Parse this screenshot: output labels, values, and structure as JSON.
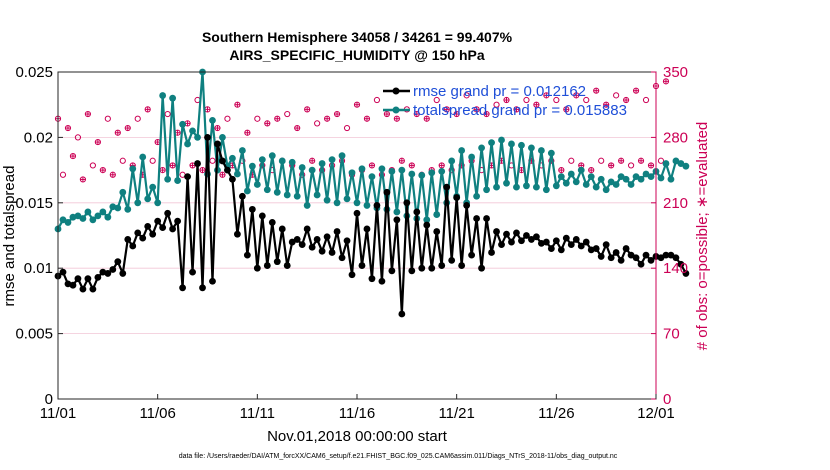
{
  "chart_data": {
    "type": "line",
    "title_line1": "Southern Hemisphere 34058 / 34261 = 99.407%",
    "title_line2": "AIRS_SPECIFIC_HUMIDITY @ 150 hPa",
    "xlabel": "Nov.01,2018 00:00:00 start",
    "ylabel_left": "rmse and totalspread",
    "ylabel_right": "# of obs: o=possible; ∗=evaluated",
    "footnote": "data file: /Users/raeder/DAI/ATM_forcXX/CAM6_setup/f.e21.FHIST_BGC.f09_025.CAM6assim.011/Diags_NTrS_2018-11/obs_diag_output.nc",
    "x_ticks": [
      0,
      5,
      10,
      15,
      20,
      25,
      30
    ],
    "x_tick_labels": [
      "11/01",
      "11/06",
      "11/11",
      "11/16",
      "11/21",
      "11/26",
      "12/01"
    ],
    "ylim_left": [
      0,
      0.025
    ],
    "y_ticks_left": [
      0,
      0.005,
      0.01,
      0.015,
      0.02,
      0.025
    ],
    "y_tick_labels_left": [
      "0",
      "0.005",
      "0.01",
      "0.015",
      "0.02",
      "0.025"
    ],
    "ylim_right": [
      0,
      350
    ],
    "y_ticks_right": [
      0,
      70,
      140,
      210,
      280,
      350
    ],
    "y_tick_labels_right": [
      "0",
      "70",
      "140",
      "210",
      "280",
      "350"
    ],
    "step_days": 0.25,
    "colors": {
      "rmse": "#000000",
      "totalspread": "#0f8080",
      "obs": "#cc0055",
      "legend_text": "#1f4fd8"
    },
    "series": [
      {
        "name": "rmse grand pr = 0.012162",
        "values": [
          0.0094,
          0.0097,
          0.0088,
          0.0087,
          0.0092,
          0.0084,
          0.0092,
          0.0084,
          0.0093,
          0.0097,
          0.0096,
          0.0099,
          0.0105,
          0.0096,
          0.0122,
          0.0117,
          0.0127,
          0.0123,
          0.0132,
          0.0126,
          0.0136,
          0.0131,
          0.0142,
          0.013,
          0.0136,
          0.0085,
          0.017,
          0.0097,
          0.018,
          0.0085,
          0.02,
          0.009,
          0.0195,
          0.0182,
          0.0175,
          0.0168,
          0.0126,
          0.0155,
          0.011,
          0.0145,
          0.01,
          0.014,
          0.0102,
          0.0135,
          0.0105,
          0.013,
          0.0102,
          0.012,
          0.0122,
          0.0118,
          0.013,
          0.0116,
          0.0122,
          0.0113,
          0.0124,
          0.0112,
          0.0128,
          0.0108,
          0.0121,
          0.0095,
          0.0142,
          0.0102,
          0.013,
          0.0092,
          0.0148,
          0.009,
          0.0158,
          0.0098,
          0.0137,
          0.0065,
          0.015,
          0.0098,
          0.0143,
          0.01,
          0.0133,
          0.01,
          0.0128,
          0.0102,
          0.0162,
          0.0106,
          0.0154,
          0.0102,
          0.0148,
          0.011,
          0.0138,
          0.01,
          0.0138,
          0.0112,
          0.0128,
          0.0118,
          0.0126,
          0.012,
          0.0127,
          0.0121,
          0.0125,
          0.0122,
          0.0124,
          0.0119,
          0.012,
          0.0115,
          0.0121,
          0.0114,
          0.0123,
          0.0118,
          0.0122,
          0.0117,
          0.012,
          0.0114,
          0.0115,
          0.0109,
          0.0118,
          0.0108,
          0.0112,
          0.0106,
          0.0115,
          0.011,
          0.0108,
          0.0103,
          0.011,
          0.0106,
          0.0109,
          0.0108,
          0.011,
          0.011,
          0.0108,
          0.0103,
          0.0096
        ]
      },
      {
        "name": "totalspread grand pr = 0.015883",
        "values": [
          0.013,
          0.0137,
          0.0135,
          0.0139,
          0.014,
          0.0138,
          0.0143,
          0.0137,
          0.014,
          0.0143,
          0.0139,
          0.0147,
          0.0146,
          0.0158,
          0.0145,
          0.0176,
          0.015,
          0.0185,
          0.0153,
          0.0162,
          0.015,
          0.0232,
          0.0168,
          0.023,
          0.0167,
          0.021,
          0.0195,
          0.0205,
          0.02,
          0.025,
          0.0172,
          0.0213,
          0.0175,
          0.02,
          0.0178,
          0.0184,
          0.0172,
          0.019,
          0.0159,
          0.0178,
          0.0164,
          0.0183,
          0.016,
          0.0186,
          0.0158,
          0.0182,
          0.0156,
          0.0181,
          0.0155,
          0.0177,
          0.0148,
          0.0175,
          0.0156,
          0.018,
          0.0152,
          0.0183,
          0.015,
          0.0186,
          0.0153,
          0.0173,
          0.015,
          0.0176,
          0.0148,
          0.017,
          0.0146,
          0.0176,
          0.0145,
          0.0174,
          0.0143,
          0.0175,
          0.014,
          0.0172,
          0.0138,
          0.0171,
          0.0137,
          0.0173,
          0.0141,
          0.0174,
          0.015,
          0.0182,
          0.0155,
          0.019,
          0.015,
          0.0185,
          0.0155,
          0.0192,
          0.016,
          0.0196,
          0.0162,
          0.0198,
          0.0165,
          0.0195,
          0.0162,
          0.0194,
          0.0163,
          0.0192,
          0.0162,
          0.019,
          0.016,
          0.0188,
          0.0163,
          0.017,
          0.0165,
          0.0172,
          0.0166,
          0.0175,
          0.0164,
          0.017,
          0.0162,
          0.0168,
          0.016,
          0.0166,
          0.0164,
          0.017,
          0.0168,
          0.0164,
          0.017,
          0.0168,
          0.0172,
          0.017,
          0.0174,
          0.0169,
          0.018,
          0.0168,
          0.0182,
          0.018,
          0.0178
        ]
      },
      {
        "name": "obs count",
        "values": [
          300,
          240,
          290,
          260,
          280,
          235,
          305,
          250,
          275,
          245,
          300,
          240,
          285,
          255,
          290,
          250,
          300,
          240,
          310,
          255,
          275,
          245,
          305,
          250,
          285,
          240,
          295,
          250,
          320,
          245,
          310,
          255,
          290,
          240,
          300,
          250,
          315,
          255,
          285,
          240,
          300,
          250,
          295,
          245,
          300,
          255,
          305,
          250,
          290,
          240,
          310,
          255,
          295,
          245,
          300,
          250,
          305,
          255,
          290,
          240,
          315,
          245,
          300,
          250,
          320,
          240,
          305,
          245,
          300,
          255,
          310,
          250,
          305,
          240,
          300,
          245,
          320,
          250,
          310,
          245,
          305,
          250,
          325,
          255,
          310,
          245,
          305,
          250,
          315,
          255,
          320,
          250,
          310,
          245,
          320,
          255,
          315,
          250,
          325,
          255,
          320,
          245,
          310,
          255,
          325,
          250,
          320,
          245,
          330,
          255,
          315,
          250,
          325,
          255,
          320,
          250,
          330,
          255,
          320,
          250,
          335,
          255,
          340
        ]
      }
    ]
  }
}
